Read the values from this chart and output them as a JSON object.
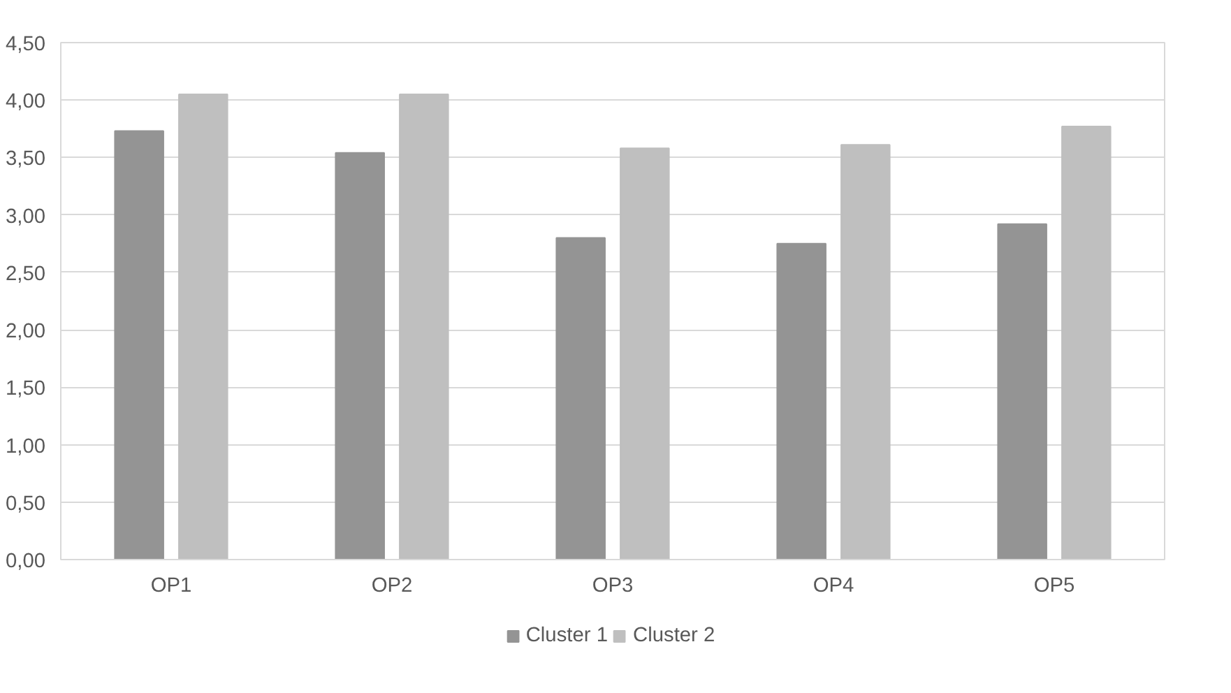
{
  "chart_data": {
    "type": "bar",
    "categories": [
      "OP1",
      "OP2",
      "OP3",
      "OP4",
      "OP5"
    ],
    "series": [
      {
        "name": "Cluster 1",
        "color": "#949494",
        "values": [
          3.73,
          3.54,
          2.8,
          2.75,
          2.92
        ]
      },
      {
        "name": "Cluster 2",
        "color": "#bfbfbf",
        "values": [
          4.05,
          4.05,
          3.58,
          3.61,
          3.77
        ]
      }
    ],
    "ylim": [
      0,
      4.5
    ],
    "yticks": [
      {
        "value": 0,
        "label": "0,00"
      },
      {
        "value": 0.5,
        "label": "0,50"
      },
      {
        "value": 1,
        "label": "1,00"
      },
      {
        "value": 1.5,
        "label": "1,50"
      },
      {
        "value": 2,
        "label": "2,00"
      },
      {
        "value": 2.5,
        "label": "2,50"
      },
      {
        "value": 3,
        "label": "3,00"
      },
      {
        "value": 3.5,
        "label": "3,50"
      },
      {
        "value": 4,
        "label": "4,00"
      },
      {
        "value": 4.5,
        "label": "4,50"
      }
    ],
    "grid": "y",
    "legend": "bottom"
  }
}
